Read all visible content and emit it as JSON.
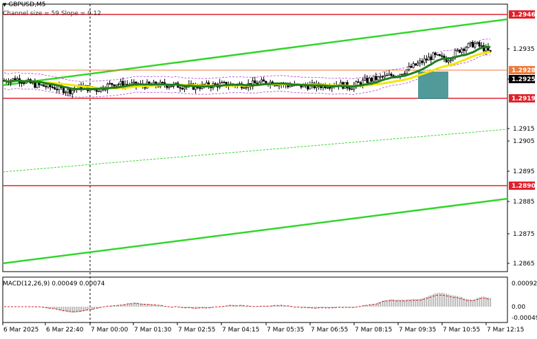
{
  "header": {
    "symbol_timeframe": "GBPUSD,M5",
    "channel_info": "Channel size = 59 Slope = 0.12",
    "dropdown_glyph": "▼"
  },
  "macd": {
    "label": "MACD(12,26,9) 0.00049 0.00074",
    "axis_labels": [
      "0.00092",
      "0.00",
      "-0.00049"
    ]
  },
  "price_axis": {
    "ticks": [
      "1.2935",
      "1.2925",
      "1.2915",
      "1.2905",
      "1.2895",
      "1.2885",
      "1.2875",
      "1.2865"
    ]
  },
  "levels": [
    {
      "label": "1.2946",
      "color": "#e0212b"
    },
    {
      "label": "1.2928",
      "color": "#f07a3a"
    },
    {
      "label": "1.2925",
      "color": "#000000"
    },
    {
      "label": "1.2919",
      "color": "#e0212b"
    },
    {
      "label": "1.2890",
      "color": "#e0212b"
    }
  ],
  "time_axis": {
    "labels": [
      "6 Mar 2025",
      "6 Mar 22:40",
      "7 Mar 00:00",
      "7 Mar 01:30",
      "7 Mar 02:55",
      "7 Mar 04:15",
      "7 Mar 05:35",
      "7 Mar 06:55",
      "7 Mar 08:15",
      "7 Mar 09:35",
      "7 Mar 10:55",
      "7 Mar 12:15"
    ]
  },
  "colors": {
    "background": "#ffffff",
    "resistance_line": "#e0212b",
    "channel_line": "#31d62a",
    "ma_green": "#1e7d1e",
    "ma_yellow": "#f2e600",
    "envelope": "#b040c8",
    "highlight_box": "#3f8f8f",
    "macd_histogram": "#b8b8b8",
    "macd_signal": "#d02020",
    "candles": "#000000"
  }
}
